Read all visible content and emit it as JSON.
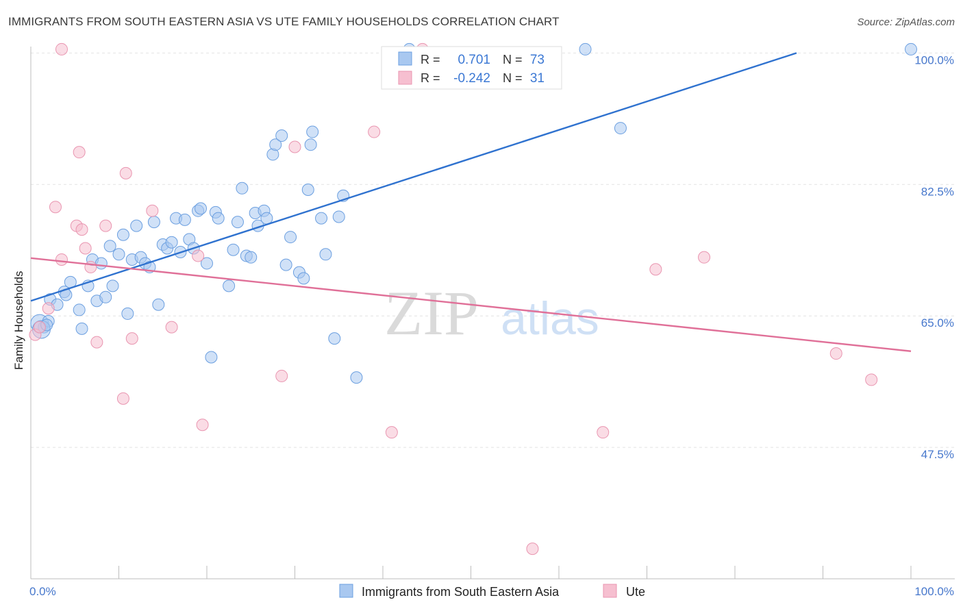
{
  "title": "IMMIGRANTS FROM SOUTH EASTERN ASIA VS UTE FAMILY HOUSEHOLDS CORRELATION CHART",
  "source": "Source: ZipAtlas.com",
  "watermark": {
    "zip": "ZIP",
    "atlas": "atlas"
  },
  "chart_data": {
    "type": "scatter",
    "xlabel": "",
    "ylabel": "Family Households",
    "xlim": [
      0,
      100
    ],
    "ylim": [
      30,
      102.5
    ],
    "x_tick_labels": [
      "0.0%",
      "100.0%"
    ],
    "y_ticks": [
      47.5,
      65.0,
      82.5,
      100.0
    ],
    "y_tick_labels": [
      "47.5%",
      "65.0%",
      "82.5%",
      "100.0%"
    ],
    "legend": {
      "placement": "top-center",
      "entries": [
        {
          "r_label": "R =",
          "r_value": "0.701",
          "n_label": "N =",
          "n_value": "73"
        },
        {
          "r_label": "R =",
          "r_value": "-0.242",
          "n_label": "N =",
          "n_value": "31"
        }
      ]
    },
    "bottom_legend": [
      "Immigrants from South Eastern Asia",
      "Ute"
    ],
    "colors": {
      "blue_fill": "#a9c8f0",
      "blue_stroke": "#6b9fe0",
      "blue_line": "#2f72cf",
      "pink_fill": "#f6bfd0",
      "pink_stroke": "#e995b0",
      "pink_line": "#e07098",
      "tick_text": "#4677cc"
    },
    "series": [
      {
        "name": "Immigrants from South Eastern Asia",
        "color": "#a9c8f0",
        "trend": {
          "x": [
            0,
            87
          ],
          "y": [
            67.0,
            100.0
          ]
        },
        "points": [
          [
            1,
            64.0
          ],
          [
            1.5,
            63.5
          ],
          [
            2,
            64.3
          ],
          [
            1.2,
            63.2
          ],
          [
            2.2,
            67.2
          ],
          [
            3,
            66.5
          ],
          [
            3.8,
            68.2
          ],
          [
            4.5,
            69.5
          ],
          [
            5.5,
            65.8
          ],
          [
            5.8,
            63.3
          ],
          [
            6.5,
            69.0
          ],
          [
            7,
            72.5
          ],
          [
            7.5,
            67.0
          ],
          [
            8,
            72.0
          ],
          [
            8.5,
            67.5
          ],
          [
            9,
            74.3
          ],
          [
            9.3,
            69.0
          ],
          [
            10,
            73.2
          ],
          [
            10.5,
            75.8
          ],
          [
            11,
            65.3
          ],
          [
            11.5,
            72.5
          ],
          [
            12,
            77.0
          ],
          [
            12.5,
            72.8
          ],
          [
            13,
            72.0
          ],
          [
            13.5,
            71.5
          ],
          [
            14,
            77.5
          ],
          [
            14.5,
            66.5
          ],
          [
            15,
            74.5
          ],
          [
            15.5,
            74.0
          ],
          [
            16,
            74.8
          ],
          [
            16.5,
            78.0
          ],
          [
            17,
            73.5
          ],
          [
            17.5,
            77.8
          ],
          [
            18,
            75.2
          ],
          [
            18.5,
            74.0
          ],
          [
            19,
            79.0
          ],
          [
            19.3,
            79.3
          ],
          [
            20,
            72.0
          ],
          [
            20.5,
            59.5
          ],
          [
            21,
            78.8
          ],
          [
            21.3,
            78.0
          ],
          [
            22.5,
            69.0
          ],
          [
            23,
            73.8
          ],
          [
            23.5,
            77.5
          ],
          [
            24,
            82.0
          ],
          [
            24.5,
            73.0
          ],
          [
            25,
            72.8
          ],
          [
            25.5,
            78.7
          ],
          [
            25.8,
            77.0
          ],
          [
            26.5,
            79.0
          ],
          [
            26.8,
            78.0
          ],
          [
            27.5,
            86.5
          ],
          [
            27.8,
            87.8
          ],
          [
            28.5,
            89.0
          ],
          [
            29,
            71.8
          ],
          [
            29.5,
            75.5
          ],
          [
            30.5,
            70.8
          ],
          [
            31,
            70.0
          ],
          [
            31.5,
            81.8
          ],
          [
            31.8,
            87.8
          ],
          [
            32,
            89.5
          ],
          [
            33,
            78.0
          ],
          [
            33.5,
            73.2
          ],
          [
            34.5,
            62.0
          ],
          [
            35,
            78.2
          ],
          [
            35.5,
            81.0
          ],
          [
            37,
            56.8
          ],
          [
            43,
            100.5
          ],
          [
            63,
            100.5
          ],
          [
            67,
            90.0
          ],
          [
            100,
            100.5
          ],
          [
            1.8,
            63.8
          ],
          [
            4,
            67.8
          ]
        ]
      },
      {
        "name": "Ute",
        "color": "#f6bfd0",
        "trend": {
          "x": [
            0,
            100
          ],
          "y": [
            72.7,
            60.3
          ]
        },
        "points": [
          [
            0.5,
            62.5
          ],
          [
            1,
            63.5
          ],
          [
            2,
            66.0
          ],
          [
            3.5,
            72.5
          ],
          [
            2.8,
            79.5
          ],
          [
            3.5,
            100.5
          ],
          [
            5.5,
            86.8
          ],
          [
            5.2,
            77.0
          ],
          [
            5.8,
            76.5
          ],
          [
            6.2,
            74.0
          ],
          [
            6.8,
            71.5
          ],
          [
            7.5,
            61.5
          ],
          [
            8.5,
            77.0
          ],
          [
            10.5,
            54.0
          ],
          [
            10.8,
            84.0
          ],
          [
            11.5,
            62.0
          ],
          [
            13.8,
            79.0
          ],
          [
            16,
            63.5
          ],
          [
            19.5,
            50.5
          ],
          [
            19,
            73.0
          ],
          [
            28.5,
            57.0
          ],
          [
            30,
            87.5
          ],
          [
            39,
            89.5
          ],
          [
            41,
            49.5
          ],
          [
            44.5,
            100.5
          ],
          [
            65,
            49.5
          ],
          [
            71,
            71.2
          ],
          [
            76.5,
            72.8
          ],
          [
            91.5,
            60.0
          ],
          [
            95.5,
            56.5
          ],
          [
            57,
            34.0
          ]
        ]
      }
    ]
  }
}
